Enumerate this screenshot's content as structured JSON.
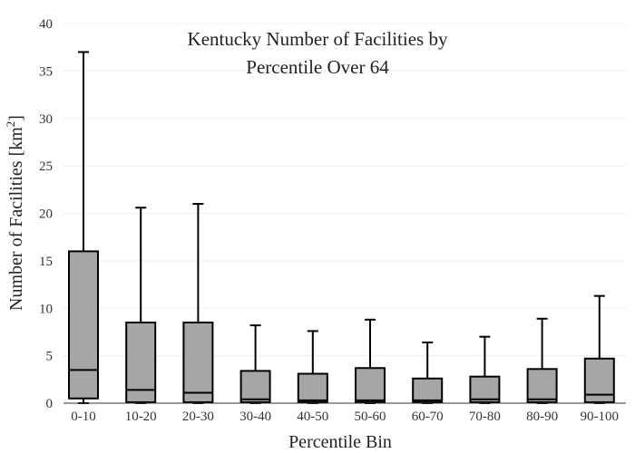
{
  "chart_data": {
    "type": "box",
    "title_lines": [
      "Kentucky Number of Facilities by",
      "Percentile Over 64"
    ],
    "xlabel": "Percentile Bin",
    "ylabel_main": "Number of Facilities  [km",
    "ylabel_sup": "2",
    "ylabel_end": "]",
    "ylim": [
      0,
      40
    ],
    "yticks": [
      0,
      5,
      10,
      15,
      20,
      25,
      30,
      35,
      40
    ],
    "grid": true,
    "categories": [
      "0-10",
      "10-20",
      "20-30",
      "30-40",
      "40-50",
      "50-60",
      "60-70",
      "70-80",
      "80-90",
      "90-100"
    ],
    "series": [
      {
        "min": [
          0,
          0,
          0,
          0,
          0,
          0,
          0,
          0,
          0,
          0
        ],
        "q1": [
          0.5,
          0.1,
          0.1,
          0.1,
          0.1,
          0.1,
          0.1,
          0.1,
          0.1,
          0.1
        ],
        "median": [
          3.5,
          1.4,
          1.1,
          0.4,
          0.3,
          0.3,
          0.3,
          0.4,
          0.4,
          0.9
        ],
        "q3": [
          16,
          8.5,
          8.5,
          3.4,
          3.1,
          3.7,
          2.6,
          2.8,
          3.6,
          4.7
        ],
        "max": [
          37,
          20.6,
          21,
          8.2,
          7.6,
          8.8,
          6.4,
          7.0,
          8.9,
          11.3
        ]
      }
    ]
  }
}
